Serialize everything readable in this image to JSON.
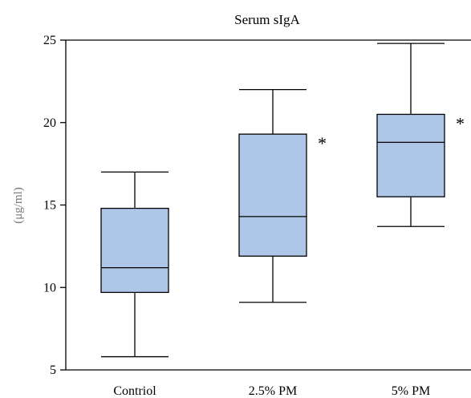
{
  "chart_data": {
    "type": "boxplot",
    "title": "Serum sIgA",
    "xlabel": "",
    "ylabel": "(μg/ml)",
    "ylim": [
      5,
      25
    ],
    "yticks": [
      5,
      10,
      15,
      20,
      25
    ],
    "grid": false,
    "legend": "none",
    "colors": {
      "box_fill": "#aec7e8",
      "stroke": "#000000",
      "ylabel_color": "#777777"
    },
    "categories": [
      "Contriol",
      "2.5% PM",
      "5% PM"
    ],
    "boxes": [
      {
        "category": "Contriol",
        "min": 5.8,
        "q1": 9.7,
        "median": 11.2,
        "q3": 14.8,
        "max": 17.0,
        "annotation": ""
      },
      {
        "category": "2.5% PM",
        "min": 9.1,
        "q1": 11.9,
        "median": 14.3,
        "q3": 19.3,
        "max": 22.0,
        "annotation": "*"
      },
      {
        "category": "5% PM",
        "min": 13.7,
        "q1": 15.5,
        "median": 18.8,
        "q3": 20.5,
        "max": 24.8,
        "annotation": "*"
      }
    ]
  }
}
